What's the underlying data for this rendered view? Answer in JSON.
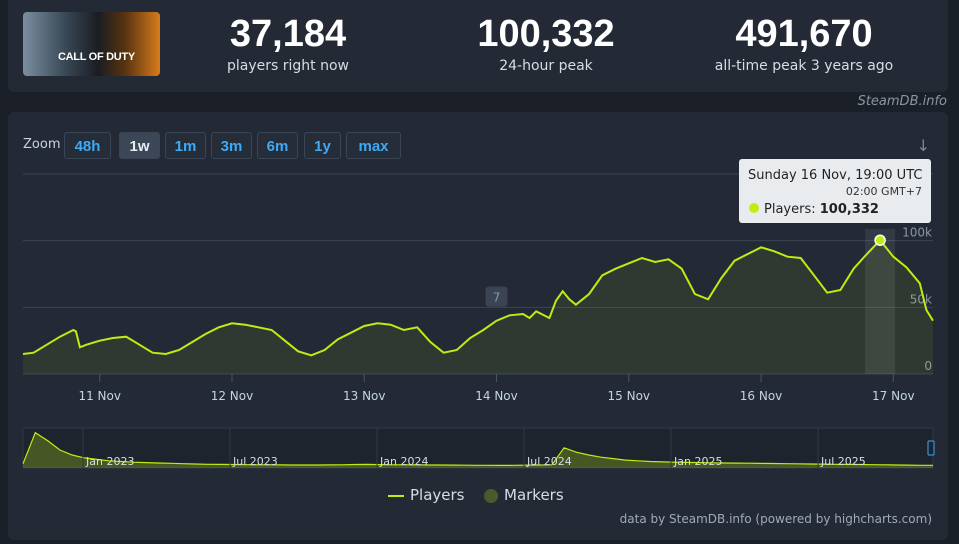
{
  "header": {
    "game_logo_text": "CALL OF DUTY",
    "stats": [
      {
        "value": "37,184",
        "label": "players right now"
      },
      {
        "value": "100,332",
        "label": "24-hour peak"
      },
      {
        "value": "491,670",
        "label": "all-time peak 3 years ago"
      }
    ],
    "credit": "SteamDB.info"
  },
  "zoom": {
    "label": "Zoom",
    "buttons": [
      "48h",
      "1w",
      "1m",
      "3m",
      "6m",
      "1y",
      "max"
    ],
    "active": "1w"
  },
  "tooltip": {
    "title": "Sunday 16 Nov, 19:00 UTC",
    "subtitle": "02:00 GMT+7",
    "series": "Players",
    "value": "100,332"
  },
  "flag_label": "7",
  "legend": [
    "Players",
    "Markers"
  ],
  "footer_credit": "data by SteamDB.info (powered by highcharts.com)",
  "colors": {
    "series": "#beee11",
    "marker": "#4a5a2c",
    "background": "#1b2028",
    "panel": "#232a35"
  },
  "chart_data": [
    {
      "type": "line",
      "series": [
        {
          "name": "Players",
          "unit": "days (x), players (y)"
        }
      ],
      "x_ticks": [
        "11 Nov",
        "12 Nov",
        "13 Nov",
        "14 Nov",
        "15 Nov",
        "16 Nov",
        "17 Nov"
      ],
      "y_ticks": [
        "0",
        "50k",
        "100k"
      ],
      "ylim": [
        0,
        150000
      ],
      "xlim": [
        10.42,
        17.3
      ],
      "points": [
        [
          10.42,
          15000
        ],
        [
          10.5,
          16000
        ],
        [
          10.6,
          22000
        ],
        [
          10.7,
          28000
        ],
        [
          10.8,
          33000
        ],
        [
          10.82,
          32000
        ],
        [
          10.85,
          20000
        ],
        [
          10.9,
          22000
        ],
        [
          11.0,
          25000
        ],
        [
          11.1,
          27000
        ],
        [
          11.2,
          28000
        ],
        [
          11.3,
          22000
        ],
        [
          11.4,
          16000
        ],
        [
          11.5,
          15000
        ],
        [
          11.6,
          18000
        ],
        [
          11.7,
          24000
        ],
        [
          11.8,
          30000
        ],
        [
          11.9,
          35000
        ],
        [
          12.0,
          38000
        ],
        [
          12.1,
          37000
        ],
        [
          12.2,
          35000
        ],
        [
          12.3,
          33000
        ],
        [
          12.4,
          25000
        ],
        [
          12.5,
          17000
        ],
        [
          12.6,
          14000
        ],
        [
          12.7,
          18000
        ],
        [
          12.8,
          26000
        ],
        [
          12.9,
          31000
        ],
        [
          13.0,
          36000
        ],
        [
          13.1,
          38000
        ],
        [
          13.2,
          37000
        ],
        [
          13.3,
          33000
        ],
        [
          13.4,
          35000
        ],
        [
          13.5,
          24000
        ],
        [
          13.6,
          16000
        ],
        [
          13.7,
          18000
        ],
        [
          13.8,
          27000
        ],
        [
          13.9,
          33000
        ],
        [
          14.0,
          40000
        ],
        [
          14.1,
          44000
        ],
        [
          14.2,
          45000
        ],
        [
          14.25,
          42000
        ],
        [
          14.3,
          47000
        ],
        [
          14.4,
          42000
        ],
        [
          14.45,
          55000
        ],
        [
          14.5,
          62000
        ],
        [
          14.55,
          56000
        ],
        [
          14.6,
          52000
        ],
        [
          14.7,
          60000
        ],
        [
          14.8,
          74000
        ],
        [
          14.9,
          79000
        ],
        [
          15.0,
          83000
        ],
        [
          15.1,
          87000
        ],
        [
          15.2,
          84000
        ],
        [
          15.3,
          86000
        ],
        [
          15.4,
          79000
        ],
        [
          15.5,
          60000
        ],
        [
          15.6,
          56000
        ],
        [
          15.7,
          72000
        ],
        [
          15.8,
          85000
        ],
        [
          15.9,
          90000
        ],
        [
          16.0,
          95000
        ],
        [
          16.1,
          92000
        ],
        [
          16.2,
          88000
        ],
        [
          16.3,
          87000
        ],
        [
          16.4,
          74000
        ],
        [
          16.5,
          61000
        ],
        [
          16.6,
          63000
        ],
        [
          16.7,
          79000
        ],
        [
          16.8,
          90000
        ],
        [
          16.9,
          100332
        ],
        [
          17.0,
          88000
        ],
        [
          17.1,
          80000
        ],
        [
          17.2,
          68000
        ],
        [
          17.25,
          48000
        ],
        [
          17.3,
          40000
        ]
      ]
    },
    {
      "type": "area",
      "role": "navigator",
      "x_ticks": [
        "Jan 2023",
        "Jul 2023",
        "Jan 2024",
        "Jul 2024",
        "Jan 2025",
        "Jul 2025"
      ],
      "values": [
        60000,
        490000,
        380000,
        250000,
        180000,
        140000,
        120000,
        100000,
        90000,
        80000,
        75000,
        70000,
        65000,
        60000,
        55000,
        52000,
        50000,
        48000,
        46000,
        45000,
        44000,
        43000,
        42000,
        41000,
        42000,
        43000,
        45000,
        48000,
        50000,
        47000,
        45000,
        44000,
        43000,
        42000,
        41000,
        40000,
        39000,
        38000,
        37000,
        36000,
        38000,
        40000,
        42000,
        44000,
        280000,
        220000,
        180000,
        150000,
        130000,
        110000,
        100000,
        90000,
        85000,
        80000,
        78000,
        75000,
        72000,
        70000,
        68000,
        66000,
        64000,
        62000,
        60000,
        58000,
        56000,
        54000,
        52000,
        50000,
        48000,
        46000,
        44000,
        42000,
        40000,
        38000,
        37000
      ],
      "ylim": [
        0,
        500000
      ]
    }
  ]
}
